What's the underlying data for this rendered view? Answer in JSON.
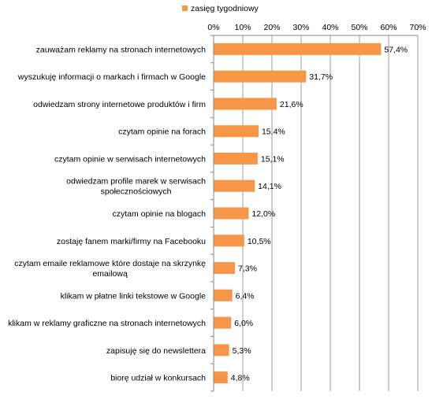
{
  "chart_data": {
    "type": "bar",
    "orientation": "horizontal",
    "legend": {
      "position": "top",
      "entries": [
        "zasięg tygodniowy"
      ]
    },
    "x_axis": {
      "position": "top",
      "range": [
        0,
        70
      ],
      "ticks": [
        0,
        10,
        20,
        30,
        40,
        50,
        60,
        70
      ],
      "tick_labels": [
        "0%",
        "10%",
        "20%",
        "30%",
        "40%",
        "50%",
        "60%",
        "70%"
      ],
      "gridlines": true
    },
    "colors": {
      "bar": "#F79646",
      "grid": "#868686",
      "axis": "#868686",
      "text": "#000000"
    },
    "series": [
      {
        "name": "zasięg tygodniowy",
        "values": [
          57.4,
          31.7,
          21.6,
          15.4,
          15.1,
          14.1,
          12.0,
          10.5,
          7.3,
          6.4,
          6.0,
          5.3,
          4.8
        ]
      }
    ],
    "categories": [
      "zauważam reklamy na stronach internetowych",
      "wyszukuję informacji o markach i firmach w Google",
      "odwiedzam strony internetowe produktów i firm",
      "czytam opinie na forach",
      "czytam  opinie w serwisach internetowych",
      "odwiedzam profile marek w serwisach społecznościowych",
      "czytam opinie na blogach",
      "zostaję fanem marki/firmy na Facebooku",
      "czytam emaile reklamowe które dostaje na skrzynkę emailową",
      "klikam w płatne linki tekstowe w Google",
      "klikam w reklamy graficzne na stronach internetowych",
      "zapisuję się do newslettera",
      "biorę udział w konkursach"
    ],
    "category_lines": [
      [
        "zauważam reklamy na stronach internetowych"
      ],
      [
        "wyszukuję informacji o markach i firmach w Google"
      ],
      [
        "odwiedzam strony internetowe produktów i firm"
      ],
      [
        "czytam opinie na forach"
      ],
      [
        "czytam  opinie w serwisach internetowych"
      ],
      [
        "odwiedzam profile marek w serwisach",
        "społecznościowych"
      ],
      [
        "czytam opinie na blogach"
      ],
      [
        "zostaję fanem marki/firmy na Facebooku"
      ],
      [
        "czytam emaile reklamowe które dostaje na skrzynkę",
        "emailową"
      ],
      [
        "klikam w płatne linki tekstowe w Google"
      ],
      [
        "klikam w reklamy graficzne na stronach internetowych"
      ],
      [
        "zapisuję się do newslettera"
      ],
      [
        "biorę udział w konkursach"
      ]
    ],
    "data_labels": [
      "57,4%",
      "31,7%",
      "21,6%",
      "15,4%",
      "15,1%",
      "14,1%",
      "12,0%",
      "10,5%",
      "7,3%",
      "6,4%",
      "6,0%",
      "5,3%",
      "4,8%"
    ]
  }
}
